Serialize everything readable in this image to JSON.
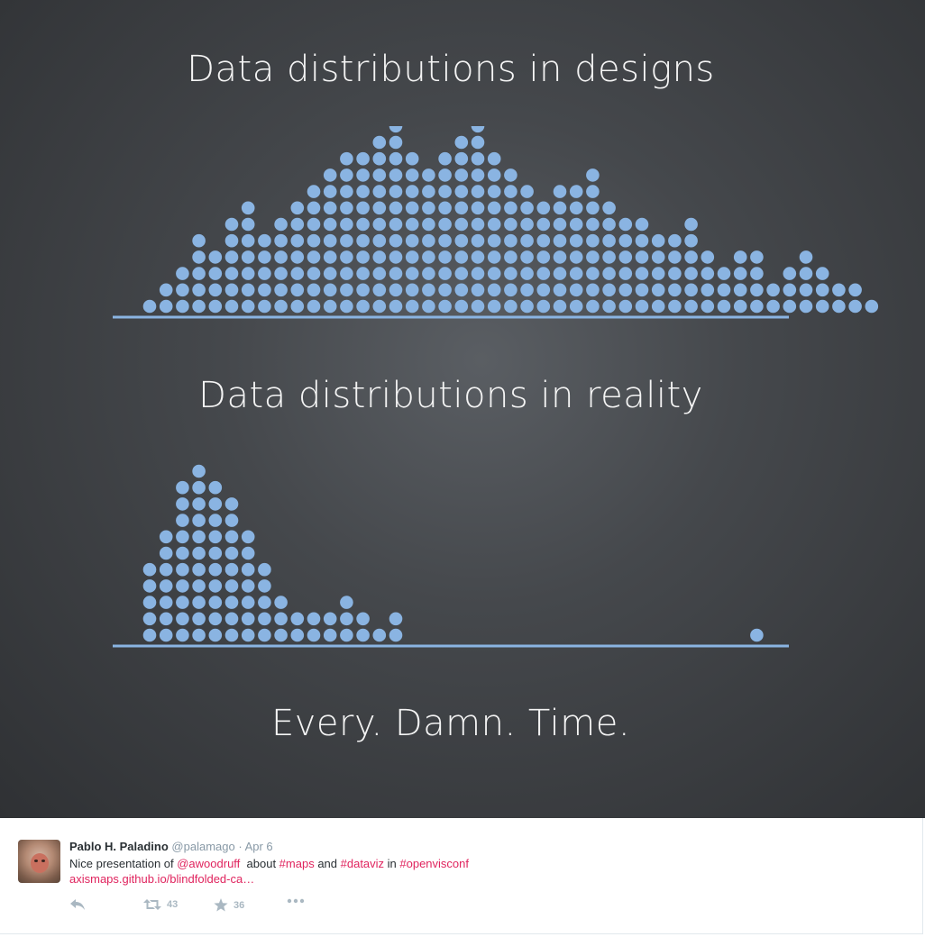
{
  "slide": {
    "title_designs": "Data distributions in designs",
    "title_reality": "Data distributions in reality",
    "tagline": "Every. Damn. Time."
  },
  "chart_data": [
    {
      "type": "bar",
      "title": "Data distributions in designs",
      "dot_color": "#8ab4e2",
      "values": [
        1,
        2,
        3,
        5,
        4,
        6,
        7,
        5,
        6,
        7,
        8,
        9,
        10,
        10,
        11,
        12,
        10,
        9,
        10,
        11,
        12,
        10,
        9,
        8,
        7,
        8,
        8,
        9,
        7,
        6,
        6,
        5,
        5,
        6,
        4,
        3,
        4,
        4,
        2,
        3,
        4,
        3,
        2,
        2,
        1
      ]
    },
    {
      "type": "bar",
      "title": "Data distributions in reality",
      "dot_color": "#8ab4e2",
      "values": [
        5,
        7,
        10,
        11,
        10,
        9,
        7,
        5,
        3,
        2,
        2,
        2,
        3,
        2,
        1,
        2,
        0,
        0,
        0,
        0,
        0,
        0,
        0,
        0,
        0,
        0,
        0,
        0,
        0,
        0,
        0,
        0,
        0,
        0,
        0,
        0,
        0,
        1
      ]
    }
  ],
  "tweet": {
    "author_name": "Pablo H. Paladino",
    "author_handle": "@palamago",
    "date_sep": "·",
    "date": "Apr 6",
    "text_prefix": "Nice presentation of ",
    "mention": "@awoodruff",
    "text_about": "  about ",
    "hashtag_maps": "#maps",
    "text_and": " and ",
    "hashtag_dataviz": "#dataviz",
    "text_in": " in ",
    "hashtag_openvisconf": "#openvisconf",
    "url": "axismaps.github.io/blindfolded-ca…",
    "retweet_count": "43",
    "favorite_count": "36",
    "accent_color": "#e0245e"
  }
}
